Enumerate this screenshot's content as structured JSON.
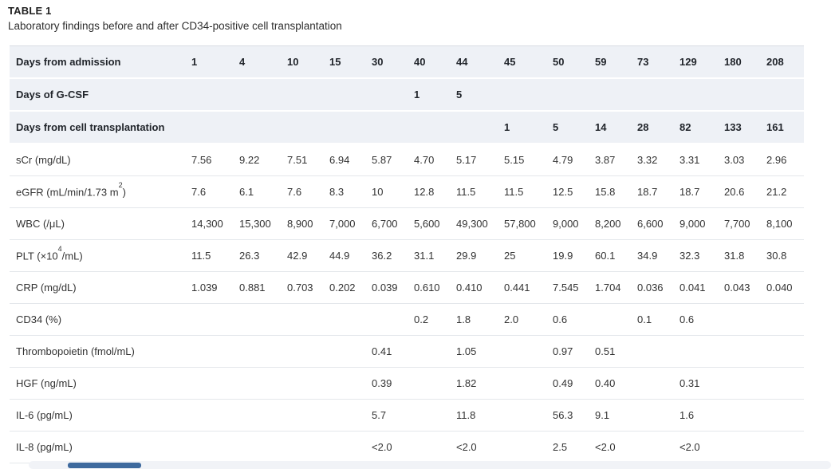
{
  "title": "TABLE 1",
  "subtitle": "Laboratory findings before and after CD34-positive cell transplantation",
  "colors": {
    "header_row_bg": "#eef1f6",
    "row_divider": "#e4e7eb",
    "scrollbar_track": "#f1f3f7",
    "scrollbar_thumb": "#3e6a9e"
  },
  "table": {
    "rows": [
      {
        "type": "header",
        "label_pre": "Days from admission",
        "label_sup": "",
        "label_post": "",
        "cells": [
          "1",
          "4",
          "10",
          "15",
          "30",
          "40",
          "44",
          "45",
          "50",
          "59",
          "73",
          "129",
          "180",
          "208"
        ]
      },
      {
        "type": "header",
        "label_pre": "Days of G-CSF",
        "label_sup": "",
        "label_post": "",
        "cells": [
          "",
          "",
          "",
          "",
          "",
          "1",
          "5",
          "",
          "",
          "",
          "",
          "",
          "",
          ""
        ]
      },
      {
        "type": "header",
        "label_pre": "Days from cell transplantation",
        "label_sup": "",
        "label_post": "",
        "cells": [
          "",
          "",
          "",
          "",
          "",
          "",
          "",
          "1",
          "5",
          "14",
          "28",
          "82",
          "133",
          "161"
        ]
      },
      {
        "type": "data",
        "label_pre": "sCr (mg/dL)",
        "label_sup": "",
        "label_post": "",
        "cells": [
          "7.56",
          "9.22",
          "7.51",
          "6.94",
          "5.87",
          "4.70",
          "5.17",
          "5.15",
          "4.79",
          "3.87",
          "3.32",
          "3.31",
          "3.03",
          "2.96"
        ]
      },
      {
        "type": "data",
        "label_pre": "eGFR (mL/min/1.73 m",
        "label_sup": "2",
        "label_post": ")",
        "cells": [
          "7.6",
          "6.1",
          "7.6",
          "8.3",
          "10",
          "12.8",
          "11.5",
          "11.5",
          "12.5",
          "15.8",
          "18.7",
          "18.7",
          "20.6",
          "21.2"
        ]
      },
      {
        "type": "data",
        "label_pre": "WBC (/μL)",
        "label_sup": "",
        "label_post": "",
        "cells": [
          "14,300",
          "15,300",
          "8,900",
          "7,000",
          "6,700",
          "5,600",
          "49,300",
          "57,800",
          "9,000",
          "8,200",
          "6,600",
          "9,000",
          "7,700",
          "8,100"
        ]
      },
      {
        "type": "data",
        "label_pre": "PLT (×10",
        "label_sup": "4",
        "label_post": "/mL)",
        "cells": [
          "11.5",
          "26.3",
          "42.9",
          "44.9",
          "36.2",
          "31.1",
          "29.9",
          "25",
          "19.9",
          "60.1",
          "34.9",
          "32.3",
          "31.8",
          "30.8"
        ]
      },
      {
        "type": "data",
        "label_pre": "CRP (mg/dL)",
        "label_sup": "",
        "label_post": "",
        "cells": [
          "1.039",
          "0.881",
          "0.703",
          "0.202",
          "0.039",
          "0.610",
          "0.410",
          "0.441",
          "7.545",
          "1.704",
          "0.036",
          "0.041",
          "0.043",
          "0.040"
        ]
      },
      {
        "type": "data",
        "label_pre": "CD34 (%)",
        "label_sup": "",
        "label_post": "",
        "cells": [
          "",
          "",
          "",
          "",
          "",
          "0.2",
          "1.8",
          "2.0",
          "0.6",
          "",
          "0.1",
          "0.6",
          "",
          ""
        ]
      },
      {
        "type": "data",
        "label_pre": "Thrombopoietin (fmol/mL)",
        "label_sup": "",
        "label_post": "",
        "cells": [
          "",
          "",
          "",
          "",
          "0.41",
          "",
          "1.05",
          "",
          "0.97",
          "0.51",
          "",
          "",
          "",
          ""
        ]
      },
      {
        "type": "data",
        "label_pre": "HGF (ng/mL)",
        "label_sup": "",
        "label_post": "",
        "cells": [
          "",
          "",
          "",
          "",
          "0.39",
          "",
          "1.82",
          "",
          "0.49",
          "0.40",
          "",
          "0.31",
          "",
          ""
        ]
      },
      {
        "type": "data",
        "label_pre": "IL-6 (pg/mL)",
        "label_sup": "",
        "label_post": "",
        "cells": [
          "",
          "",
          "",
          "",
          "5.7",
          "",
          "11.8",
          "",
          "56.3",
          "9.1",
          "",
          "1.6",
          "",
          ""
        ]
      },
      {
        "type": "data",
        "label_pre": "IL-8 (pg/mL)",
        "label_sup": "",
        "label_post": "",
        "cells": [
          "",
          "",
          "",
          "",
          "<2.0",
          "",
          "<2.0",
          "",
          "2.5",
          "<2.0",
          "",
          "<2.0",
          "",
          ""
        ]
      }
    ]
  }
}
